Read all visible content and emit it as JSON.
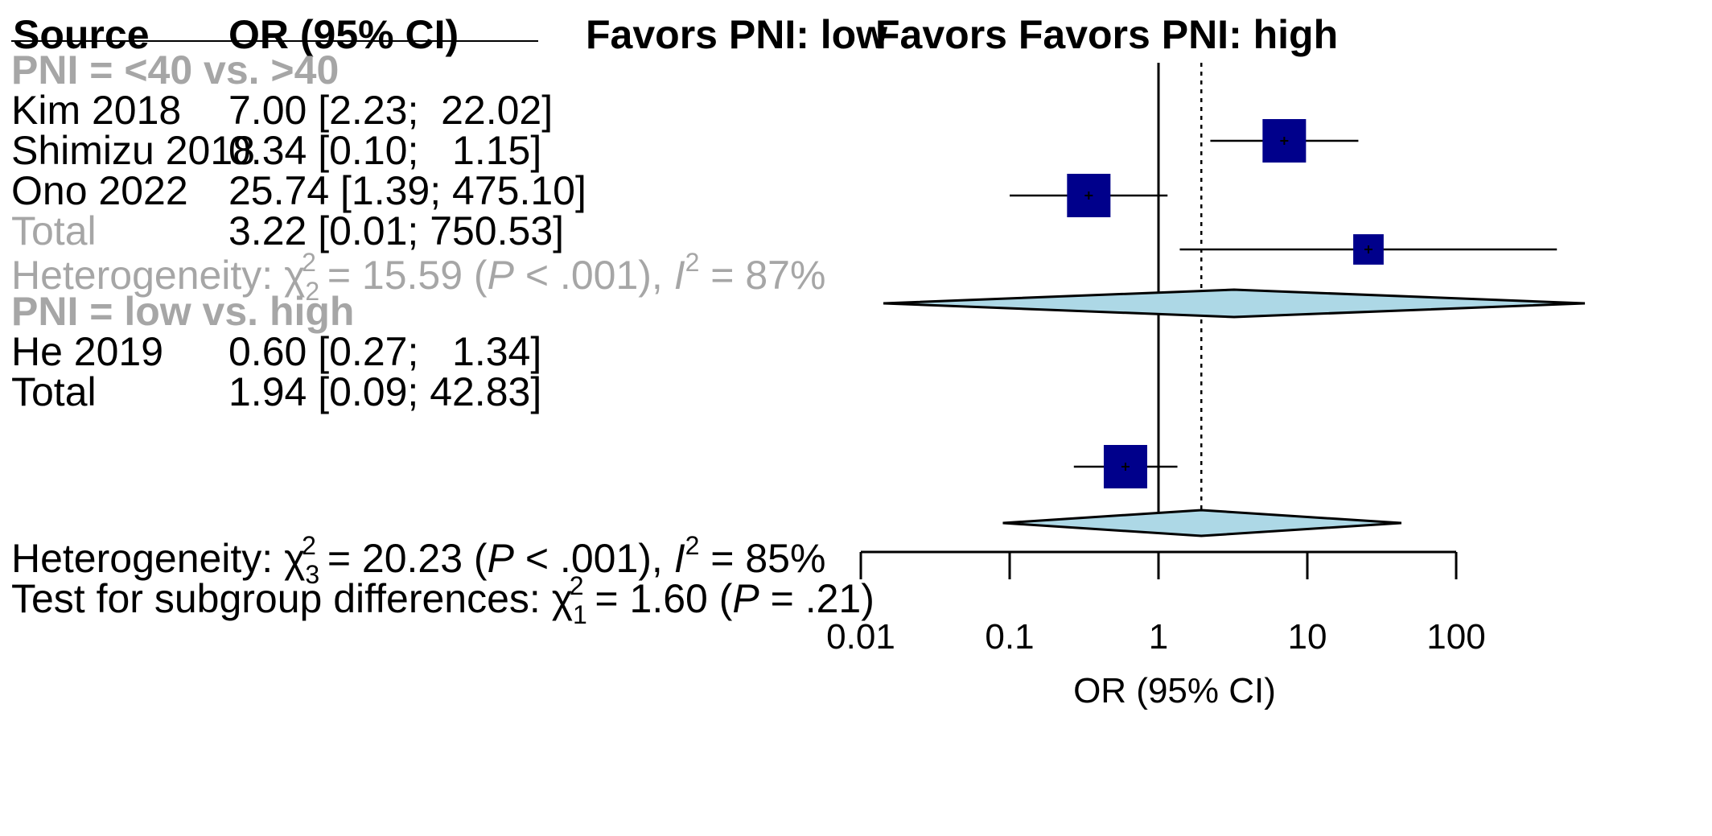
{
  "header": {
    "source": "Source",
    "or_ci": "OR (95% CI)",
    "favors_low": "Favors PNI: low",
    "favors_high": "Favors Favors PNI: high"
  },
  "subgroup1": {
    "title": "PNI = <40 vs. >40",
    "studies": [
      {
        "name": "Kim 2018",
        "est": "7.00",
        "ci": "[2.23;  22.02]"
      },
      {
        "name": "Shimizu 2018",
        "est": "0.34",
        "ci": "[0.10;   1.15]"
      },
      {
        "name": "Ono 2022",
        "est": "25.74",
        "ci": "[1.39; 475.10]"
      }
    ],
    "total_label": "Total",
    "total_value": "3.22 [0.01; 750.53]",
    "het": {
      "prefix": "Heterogeneity: ",
      "chi": "χ",
      "df": "2",
      "sq": "2",
      "stat": " = 15.59 (",
      "p": "P",
      "pval": " < .001), ",
      "i": "I",
      "i2": "2",
      "ival": " = 87%"
    }
  },
  "subgroup2": {
    "title": "PNI = low vs. high",
    "studies": [
      {
        "name": "He 2019",
        "est": "0.60",
        "ci": "[0.27;   1.34]"
      }
    ],
    "total_label": "Total",
    "total_value": "1.94 [0.09;  42.83]"
  },
  "footer": {
    "het": {
      "prefix": "Heterogeneity: ",
      "chi": "χ",
      "df": "3",
      "sq": "2",
      "stat": " = 20.23 (",
      "p": "P",
      "pval": " < .001), ",
      "i": "I",
      "i2": "2",
      "ival": " = 85%"
    },
    "test": {
      "prefix": "Test for subgroup differences: ",
      "chi": "χ",
      "df": "1",
      "sq": "2",
      "stat": " = 1.60 (",
      "p": "P",
      "pval": " = .21)"
    }
  },
  "chart_data": {
    "type": "forest",
    "scale": "log",
    "xlabel": "OR (95% CI)",
    "xlim": [
      0.01,
      100
    ],
    "ticks": [
      0.01,
      0.1,
      1,
      10,
      100
    ],
    "tick_labels": [
      "0.01",
      "0.1",
      "1",
      "10",
      "100"
    ],
    "null_line": 1,
    "overall_line": 1.94,
    "studies": [
      {
        "name": "Kim 2018",
        "or": 7.0,
        "lo": 2.23,
        "hi": 22.02,
        "weight": 1.0
      },
      {
        "name": "Shimizu 2018",
        "or": 0.34,
        "lo": 0.1,
        "hi": 1.15,
        "weight": 1.0
      },
      {
        "name": "Ono 2022",
        "or": 25.74,
        "lo": 1.39,
        "hi": 475.1,
        "weight": 0.7
      },
      {
        "name": "He 2019",
        "or": 0.6,
        "lo": 0.27,
        "hi": 1.34,
        "weight": 1.0
      }
    ],
    "diamonds": [
      {
        "name": "Total PNI <40 vs >40",
        "or": 3.22,
        "lo": 0.01,
        "hi": 750.53
      },
      {
        "name": "Total overall",
        "or": 1.94,
        "lo": 0.09,
        "hi": 42.83
      }
    ],
    "colors": {
      "square": "#00008b",
      "diamond": "#add8e6",
      "line": "#000000"
    }
  }
}
